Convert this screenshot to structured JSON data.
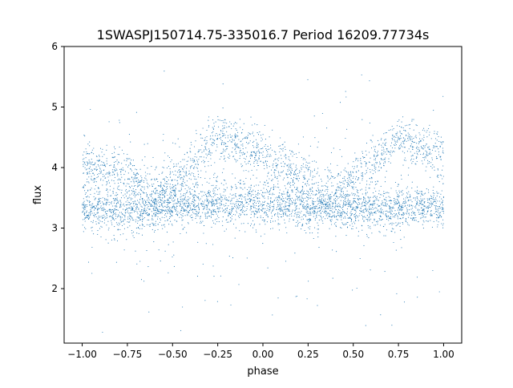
{
  "chart_data": {
    "type": "scatter",
    "title": "1SWASPJ150714.75-335016.7 Period 16209.77734s",
    "xlabel": "phase",
    "ylabel": "flux",
    "xlim": [
      -1.1,
      1.1
    ],
    "ylim": [
      1.1,
      6.0
    ],
    "xticks": [
      -1.0,
      -0.75,
      -0.5,
      -0.25,
      0.0,
      0.25,
      0.5,
      0.75,
      1.0
    ],
    "xtick_labels": [
      "−1.00",
      "−0.75",
      "−0.50",
      "−0.25",
      "0.00",
      "0.25",
      "0.50",
      "0.75",
      "1.00"
    ],
    "yticks": [
      2,
      3,
      4,
      5,
      6
    ],
    "ytick_labels": [
      "2",
      "3",
      "4",
      "5",
      "6"
    ],
    "grid": false,
    "legend": "none",
    "marker_color": "#1f77b4",
    "x_range_of_points": [
      -1.0,
      1.0
    ],
    "series": [
      {
        "band": "baseline",
        "phase": [
          -1.0,
          -0.75,
          -0.5,
          -0.25,
          0.0,
          0.25,
          0.5,
          0.75,
          1.0
        ],
        "flux": [
          3.3,
          3.3,
          3.35,
          3.4,
          3.4,
          3.35,
          3.3,
          3.35,
          3.35
        ]
      },
      {
        "band": "hump",
        "phase": [
          -1.0,
          -0.75,
          -0.6,
          -0.45,
          -0.25,
          -0.1,
          0.0,
          0.25,
          0.35,
          0.55,
          0.75,
          0.9,
          1.0
        ],
        "flux": [
          4.05,
          3.9,
          3.55,
          3.8,
          4.5,
          4.35,
          4.15,
          3.85,
          3.5,
          3.85,
          4.5,
          4.35,
          4.1
        ]
      }
    ]
  }
}
